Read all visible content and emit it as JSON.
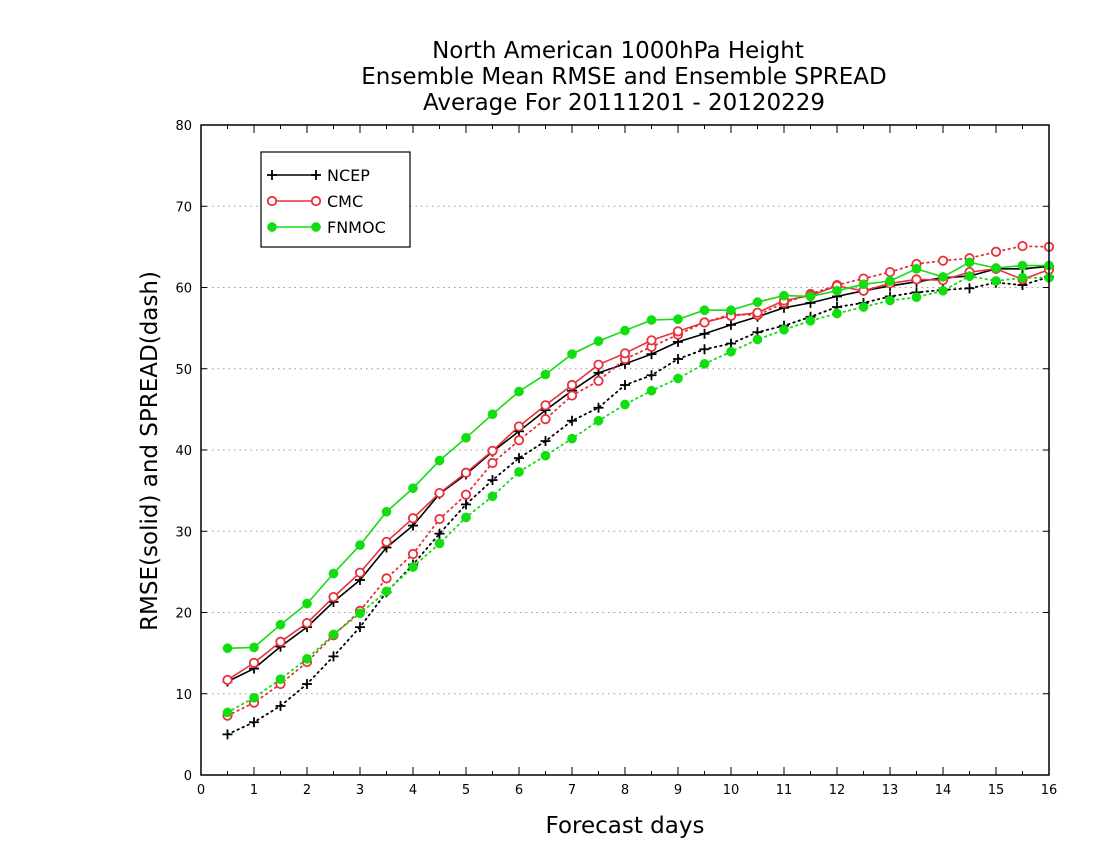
{
  "chart_data": {
    "type": "line",
    "title_lines": [
      "North American 1000hPa Height",
      "Ensemble Mean RMSE and Ensemble SPREAD",
      "Average For 20111201 - 20120229"
    ],
    "xlabel": "Forecast days",
    "ylabel": "RMSE(solid) and SPREAD(dash)",
    "xlim": [
      0,
      16
    ],
    "ylim": [
      0,
      80
    ],
    "x_ticks": [
      "0",
      "1",
      "2",
      "3",
      "4",
      "5",
      "6",
      "7",
      "8",
      "9",
      "10",
      "11",
      "12",
      "13",
      "14",
      "15",
      "16"
    ],
    "y_ticks": [
      "0",
      "10",
      "20",
      "30",
      "40",
      "50",
      "60",
      "70",
      "80"
    ],
    "grid": "horizontal dotted",
    "legend_placement": "top-left",
    "x": [
      0.5,
      1,
      1.5,
      2,
      2.5,
      3,
      3.5,
      4,
      4.5,
      5,
      5.5,
      6,
      6.5,
      7,
      7.5,
      8,
      8.5,
      9,
      9.5,
      10,
      10.5,
      11,
      11.5,
      12,
      12.5,
      13,
      13.5,
      14,
      14.5,
      15,
      15.5,
      16
    ],
    "series": [
      {
        "name": "NCEP",
        "color": "#000000",
        "marker": "plus",
        "rmse": [
          11.5,
          13.1,
          15.8,
          18.2,
          21.3,
          24.0,
          28.0,
          30.7,
          34.6,
          37.0,
          39.8,
          42.3,
          44.9,
          47.3,
          49.5,
          50.6,
          51.8,
          53.3,
          54.3,
          55.4,
          56.4,
          57.5,
          58.1,
          58.9,
          59.6,
          60.2,
          60.7,
          61.2,
          61.4,
          62.3,
          62.3,
          62.6
        ],
        "spread": [
          5.0,
          6.5,
          8.5,
          11.2,
          14.6,
          18.2,
          22.5,
          25.9,
          29.7,
          33.3,
          36.3,
          39.0,
          41.1,
          43.6,
          45.2,
          48.0,
          49.2,
          51.2,
          52.4,
          53.1,
          54.5,
          55.3,
          56.4,
          57.6,
          58.1,
          58.9,
          59.4,
          59.7,
          59.9,
          60.6,
          60.3,
          61.3
        ]
      },
      {
        "name": "CMC",
        "color": "#e8303a",
        "marker": "open-circle",
        "rmse": [
          11.7,
          13.8,
          16.4,
          18.7,
          21.9,
          24.9,
          28.7,
          31.6,
          34.7,
          37.2,
          39.9,
          42.9,
          45.5,
          48.0,
          50.5,
          51.9,
          53.5,
          54.6,
          55.7,
          56.5,
          56.9,
          58.4,
          59.0,
          60.2,
          59.6,
          60.5,
          61.0,
          60.9,
          61.9,
          62.3,
          61.0,
          62.2
        ],
        "spread": [
          7.3,
          8.9,
          11.2,
          13.9,
          17.2,
          20.2,
          24.2,
          27.2,
          31.5,
          34.5,
          38.4,
          41.2,
          43.8,
          46.7,
          48.5,
          51.2,
          52.7,
          54.2,
          55.7,
          56.7,
          56.6,
          58.1,
          59.2,
          60.3,
          61.1,
          61.9,
          62.9,
          63.3,
          63.6,
          64.4,
          65.1,
          65.0
        ]
      },
      {
        "name": "FNMOC",
        "color": "#11dd11",
        "marker": "filled-circle",
        "rmse": [
          15.6,
          15.7,
          18.5,
          21.1,
          24.8,
          28.3,
          32.4,
          35.3,
          38.7,
          41.5,
          44.4,
          47.2,
          49.3,
          51.8,
          53.4,
          54.7,
          56.0,
          56.1,
          57.2,
          57.2,
          58.2,
          59.0,
          58.9,
          59.6,
          60.4,
          60.8,
          62.3,
          61.3,
          63.1,
          62.4,
          62.7,
          62.7
        ],
        "spread": [
          7.7,
          9.5,
          11.8,
          14.3,
          17.3,
          19.9,
          22.6,
          25.6,
          28.5,
          31.7,
          34.3,
          37.3,
          39.3,
          41.4,
          43.6,
          45.6,
          47.3,
          48.8,
          50.6,
          52.1,
          53.6,
          54.8,
          55.9,
          56.8,
          57.6,
          58.4,
          58.8,
          59.6,
          61.4,
          60.8,
          61.2,
          61.2
        ]
      }
    ]
  }
}
